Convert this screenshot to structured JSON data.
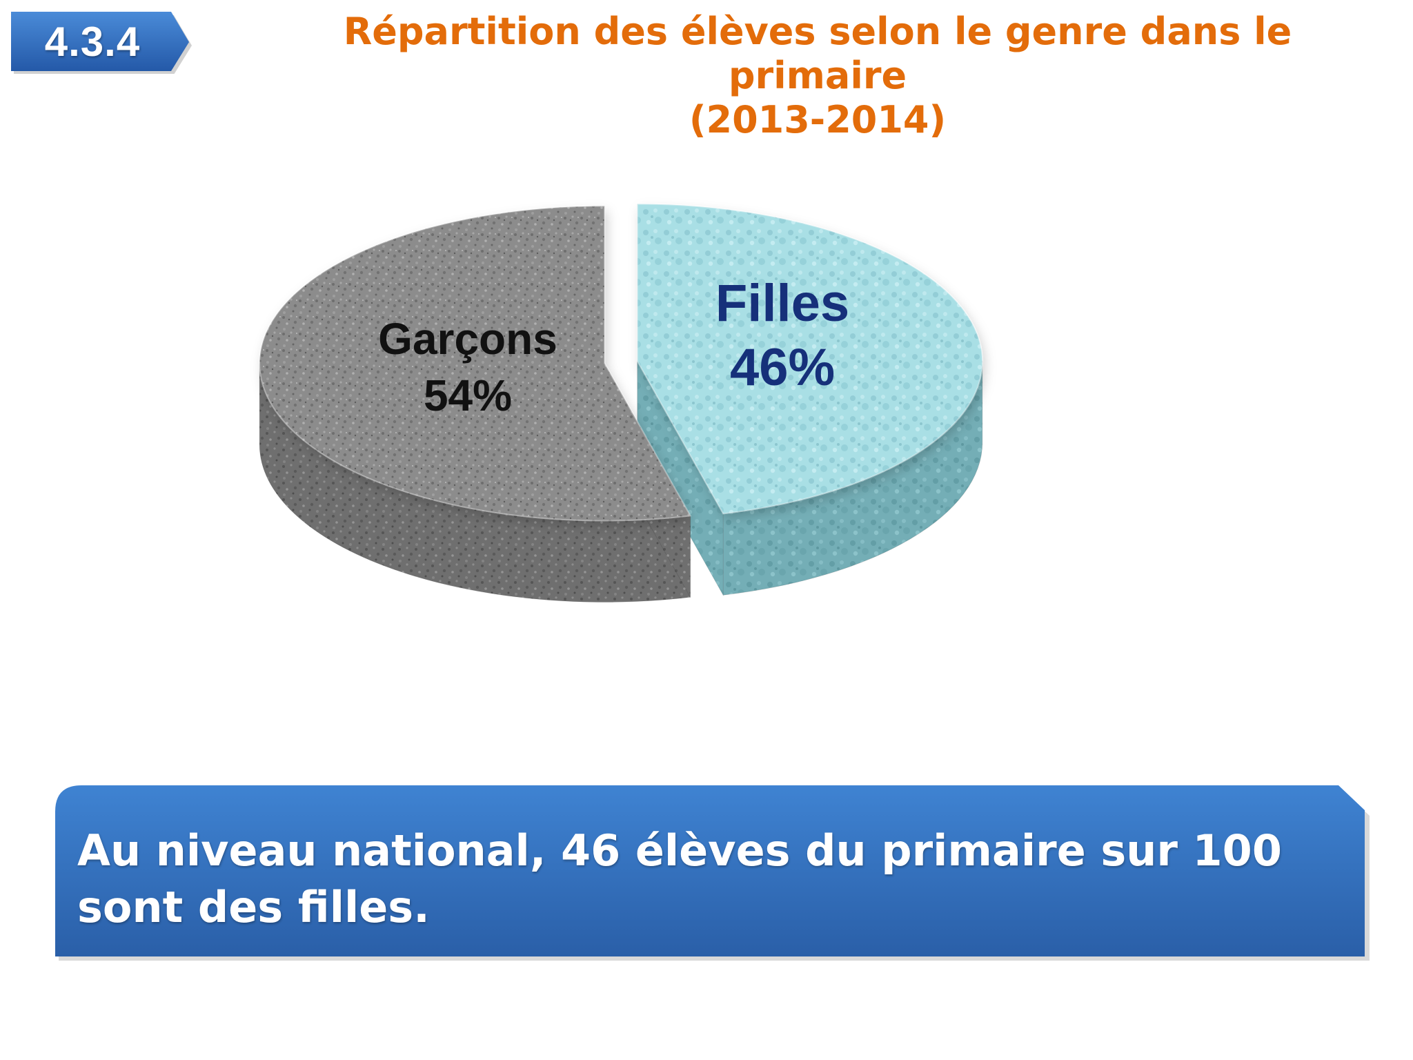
{
  "badge": {
    "label": "4.3.4"
  },
  "colors": {
    "title": "#e36c0a",
    "badge": "#2e6ec4",
    "note_box_top": "#3e82d0",
    "note_box_bottom": "#285fa9",
    "garcons_slice": "#8a8a8a",
    "filles_slice": "#a8dee4"
  },
  "chart_data": {
    "type": "pie",
    "title": "Répartition des élèves selon le genre dans le primaire",
    "subtitle": "(2013-2014)",
    "slices": [
      {
        "label": "Filles",
        "value": 46,
        "value_label": "46%"
      },
      {
        "label": "Garçons",
        "value": 54,
        "value_label": "54%"
      }
    ],
    "legend": "none",
    "style": "3d-exploded"
  },
  "note": {
    "text": "Au niveau national, 46 élèves du primaire sur 100 sont des filles."
  }
}
